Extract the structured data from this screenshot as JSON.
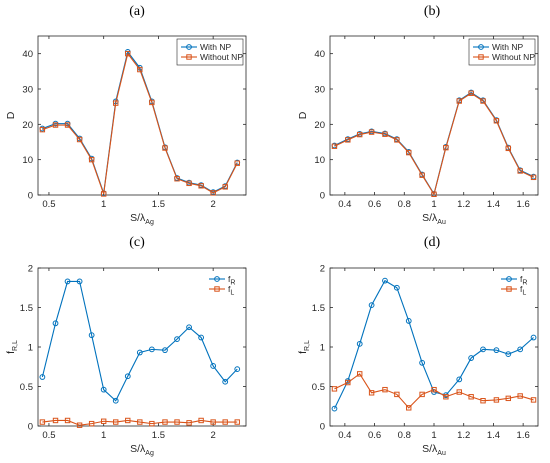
{
  "panels": [
    {
      "label": "(a)",
      "chart_data": {
        "type": "line",
        "ylabel": "D",
        "xlabel_main": "S/λ",
        "xlabel_sub": "Ag",
        "xlim": [
          0.4,
          2.3
        ],
        "ylim": [
          0,
          45
        ],
        "xticks": [
          0.5,
          1,
          1.5,
          2
        ],
        "xtick_labels": [
          "0.5",
          "1",
          "1.5",
          "2"
        ],
        "yticks": [
          0,
          10,
          20,
          30,
          40
        ],
        "ytick_labels": [
          "0",
          "10",
          "20",
          "30",
          "40"
        ],
        "x": [
          0.44,
          0.56,
          0.67,
          0.78,
          0.89,
          1.0,
          1.11,
          1.22,
          1.33,
          1.44,
          1.56,
          1.67,
          1.78,
          1.89,
          2.0,
          2.11,
          2.22
        ],
        "legend": {
          "position": "top-right",
          "style": "box"
        },
        "series": [
          {
            "name": "With NP",
            "color": "#0072BD",
            "marker": "circle",
            "values": [
              18.8,
              20.2,
              20.2,
              16.0,
              10.3,
              0.5,
              26.5,
              40.5,
              36.0,
              26.5,
              13.5,
              4.8,
              3.5,
              2.8,
              0.8,
              2.5,
              9.2
            ]
          },
          {
            "name": "Without NP",
            "color": "#D95319",
            "marker": "square",
            "values": [
              18.5,
              19.8,
              19.8,
              15.7,
              10.0,
              0.3,
              26.0,
              40.0,
              35.5,
              26.2,
              13.3,
              4.6,
              3.3,
              2.6,
              0.6,
              2.3,
              9.0
            ]
          }
        ]
      }
    },
    {
      "label": "(b)",
      "chart_data": {
        "type": "line",
        "ylabel": "D",
        "xlabel_main": "S/λ",
        "xlabel_sub": "Au",
        "xlim": [
          0.3,
          1.7
        ],
        "ylim": [
          0,
          45
        ],
        "xticks": [
          0.4,
          0.6,
          0.8,
          1,
          1.2,
          1.4,
          1.6
        ],
        "xtick_labels": [
          "0.4",
          "0.6",
          "0.8",
          "1",
          "1.2",
          "1.4",
          "1.6"
        ],
        "yticks": [
          0,
          10,
          20,
          30,
          40
        ],
        "ytick_labels": [
          "0",
          "10",
          "20",
          "30",
          "40"
        ],
        "x": [
          0.33,
          0.42,
          0.5,
          0.58,
          0.67,
          0.75,
          0.83,
          0.92,
          1.0,
          1.08,
          1.17,
          1.25,
          1.33,
          1.42,
          1.5,
          1.58,
          1.67
        ],
        "legend": {
          "position": "top-right",
          "style": "box"
        },
        "series": [
          {
            "name": "With NP",
            "color": "#0072BD",
            "marker": "circle",
            "values": [
              14.0,
              15.8,
              17.3,
              18.0,
              17.4,
              15.8,
              12.2,
              5.8,
              0.3,
              13.6,
              26.8,
              29.0,
              26.8,
              21.2,
              13.4,
              7.0,
              5.2
            ]
          },
          {
            "name": "Without NP",
            "color": "#D95319",
            "marker": "square",
            "values": [
              13.8,
              15.6,
              17.1,
              17.8,
              17.2,
              15.6,
              12.0,
              5.6,
              0.2,
              13.4,
              26.6,
              28.8,
              26.6,
              21.0,
              13.2,
              6.8,
              5.0
            ]
          }
        ]
      }
    },
    {
      "label": "(c)",
      "chart_data": {
        "type": "line",
        "ylabel": "f",
        "ylabel_sub": "R,L",
        "xlabel_main": "S/λ",
        "xlabel_sub": "Ag",
        "xlim": [
          0.4,
          2.3
        ],
        "ylim": [
          0,
          2
        ],
        "xticks": [
          0.5,
          1,
          1.5,
          2
        ],
        "xtick_labels": [
          "0.5",
          "1",
          "1.5",
          "2"
        ],
        "yticks": [
          0,
          0.5,
          1,
          1.5,
          2
        ],
        "ytick_labels": [
          "0",
          "0.5",
          "1",
          "1.5",
          "2"
        ],
        "x": [
          0.44,
          0.56,
          0.67,
          0.78,
          0.89,
          1.0,
          1.11,
          1.22,
          1.33,
          1.44,
          1.56,
          1.67,
          1.78,
          1.89,
          2.0,
          2.11,
          2.22
        ],
        "legend": {
          "position": "top-right",
          "style": "plain"
        },
        "series": [
          {
            "name": "f",
            "name_sub": "R",
            "color": "#0072BD",
            "marker": "circle",
            "values": [
              0.62,
              1.3,
              1.83,
              1.83,
              1.15,
              0.46,
              0.32,
              0.63,
              0.93,
              0.97,
              0.96,
              1.1,
              1.25,
              1.12,
              0.76,
              0.56,
              0.72
            ]
          },
          {
            "name": "f",
            "name_sub": "L",
            "color": "#D95319",
            "marker": "square",
            "values": [
              0.05,
              0.07,
              0.07,
              0.01,
              0.03,
              0.06,
              0.05,
              0.07,
              0.05,
              0.03,
              0.05,
              0.05,
              0.04,
              0.07,
              0.05,
              0.05,
              0.05
            ]
          }
        ]
      }
    },
    {
      "label": "(d)",
      "chart_data": {
        "type": "line",
        "ylabel": "f",
        "ylabel_sub": "R,L",
        "xlabel_main": "S/λ",
        "xlabel_sub": "Au",
        "xlim": [
          0.3,
          1.7
        ],
        "ylim": [
          0,
          2
        ],
        "xticks": [
          0.4,
          0.6,
          0.8,
          1,
          1.2,
          1.4,
          1.6
        ],
        "xtick_labels": [
          "0.4",
          "0.6",
          "0.8",
          "1",
          "1.2",
          "1.4",
          "1.6"
        ],
        "yticks": [
          0,
          0.5,
          1,
          1.5,
          2
        ],
        "ytick_labels": [
          "0",
          "0.5",
          "1",
          "1.5",
          "2"
        ],
        "x": [
          0.33,
          0.42,
          0.5,
          0.58,
          0.67,
          0.75,
          0.83,
          0.92,
          1.0,
          1.08,
          1.17,
          1.25,
          1.33,
          1.42,
          1.5,
          1.58,
          1.67
        ],
        "legend": {
          "position": "top-right",
          "style": "plain"
        },
        "series": [
          {
            "name": "f",
            "name_sub": "R",
            "color": "#0072BD",
            "marker": "circle",
            "values": [
              0.22,
              0.57,
              1.04,
              1.53,
              1.84,
              1.75,
              1.33,
              0.8,
              0.43,
              0.39,
              0.59,
              0.86,
              0.97,
              0.96,
              0.91,
              0.97,
              1.12
            ]
          },
          {
            "name": "f",
            "name_sub": "L",
            "color": "#D95319",
            "marker": "square",
            "values": [
              0.47,
              0.55,
              0.66,
              0.42,
              0.46,
              0.4,
              0.23,
              0.4,
              0.46,
              0.37,
              0.43,
              0.37,
              0.32,
              0.33,
              0.35,
              0.38,
              0.33
            ]
          }
        ]
      }
    }
  ]
}
